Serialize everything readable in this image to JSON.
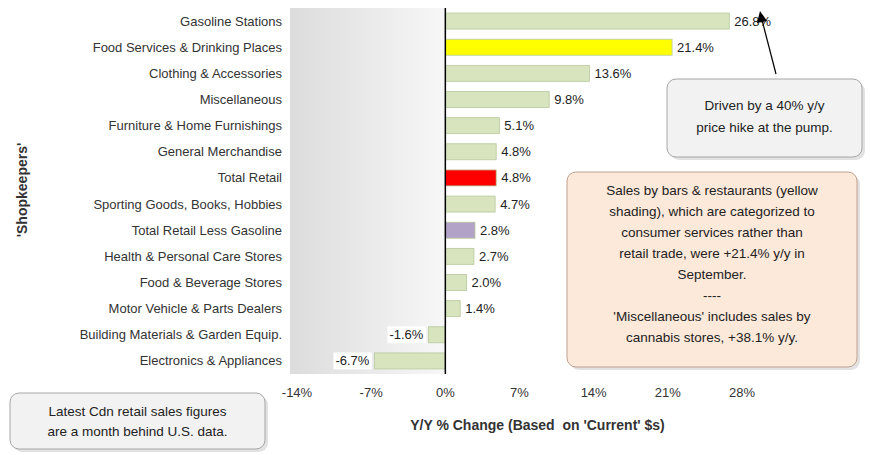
{
  "chart_data": {
    "type": "bar",
    "orientation": "horizontal",
    "categories": [
      "Gasoline Stations",
      "Food Services & Drinking Places",
      "Clothing & Accessories",
      "Miscellaneous",
      "Furniture & Home Furnishings",
      "General Merchandise",
      "Total Retail",
      "Sporting Goods, Books, Hobbies",
      "Total Retail Less Gasoline",
      "Health & Personal Care Stores",
      "Food & Beverage Stores",
      "Motor Vehicle & Parts Dealers",
      "Building Materials & Garden Equip.",
      "Electronics & Appliances"
    ],
    "values": [
      26.8,
      21.4,
      13.6,
      9.8,
      5.1,
      4.8,
      4.8,
      4.7,
      2.8,
      2.7,
      2.0,
      1.4,
      -1.6,
      -6.7
    ],
    "value_labels": [
      "26.8%",
      "21.4%",
      "13.6%",
      "9.8%",
      "5.1%",
      "4.8%",
      "4.8%",
      "4.7%",
      "2.8%",
      "2.7%",
      "2.0%",
      "1.4%",
      "-1.6%",
      "-6.7%"
    ],
    "colors": [
      "#d7e4bd",
      "#ffff00",
      "#d7e4bd",
      "#d7e4bd",
      "#d7e4bd",
      "#d7e4bd",
      "#ff0000",
      "#d7e4bd",
      "#b3a2c7",
      "#d7e4bd",
      "#d7e4bd",
      "#d7e4bd",
      "#d7e4bd",
      "#d7e4bd"
    ],
    "xlim": [
      -14,
      28
    ],
    "xticks": [
      {
        "value": -14,
        "label": "-14%"
      },
      {
        "value": -7,
        "label": "-7%"
      },
      {
        "value": 0,
        "label": "0%"
      },
      {
        "value": 7,
        "label": "7%"
      },
      {
        "value": 14,
        "label": "14%"
      },
      {
        "value": 21,
        "label": "21%"
      },
      {
        "value": 28,
        "label": "28%"
      }
    ],
    "xlabel": "Y/Y % Change (Based  on 'Current' $s)",
    "ylabel": "'Shopkeepers'",
    "data_labels": true,
    "grid": false,
    "annotations": [
      {
        "lines": [
          "Driven by a 40% y/y",
          "price hike at the pump."
        ]
      },
      {
        "lines": [
          "Sales by bars & restaurants (yellow",
          "shading), which are categorized to",
          "consumer services rather than",
          "retail trade, were +21.4% y/y in",
          "September.",
          "----",
          "'Miscellaneous' includes sales by",
          "cannabis stores, +38.1% y/y."
        ]
      },
      {
        "lines": [
          "Latest Cdn retail sales figures",
          "are a month behind U.S. data."
        ]
      }
    ]
  }
}
